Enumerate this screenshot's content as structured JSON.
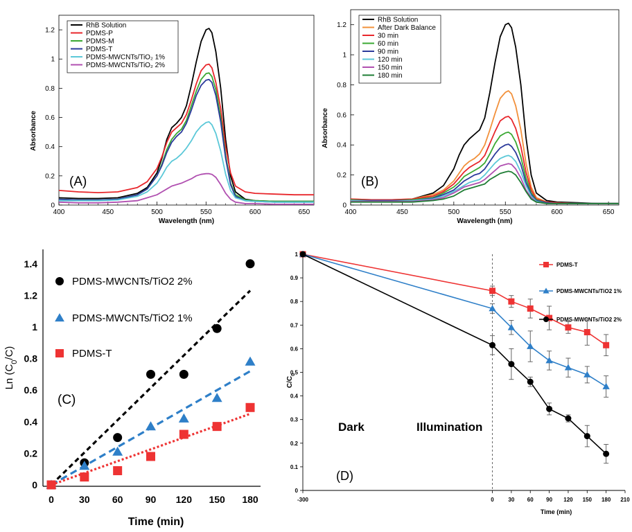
{
  "chart_data": [
    {
      "id": "A",
      "type": "line",
      "panel_label": "(A)",
      "xlabel": "Wavelength (nm)",
      "ylabel": "Absorbance",
      "xlim": [
        400,
        660
      ],
      "ylim": [
        0,
        1.3
      ],
      "xticks": [
        400,
        450,
        500,
        550,
        600,
        650
      ],
      "xtick_labels": [
        "400",
        "450",
        "500",
        "550",
        "600",
        "650"
      ],
      "yticks": [
        0,
        0.2,
        0.4,
        0.6,
        0.8,
        1,
        1.2
      ],
      "ytick_labels": [
        "0",
        "0.2",
        "0.4",
        "0.6",
        "0.8",
        "1",
        "1.2"
      ],
      "legend_position": "top-left",
      "x": [
        400,
        420,
        440,
        460,
        480,
        490,
        500,
        505,
        510,
        515,
        520,
        525,
        530,
        535,
        540,
        545,
        550,
        553,
        556,
        560,
        565,
        570,
        575,
        580,
        590,
        600,
        620,
        640,
        660
      ],
      "series": [
        {
          "name": "RhB Solution",
          "color": "#000000",
          "values": [
            0.05,
            0.045,
            0.045,
            0.05,
            0.08,
            0.12,
            0.22,
            0.32,
            0.45,
            0.53,
            0.56,
            0.6,
            0.68,
            0.82,
            0.98,
            1.12,
            1.2,
            1.21,
            1.18,
            1.05,
            0.8,
            0.45,
            0.2,
            0.09,
            0.04,
            0.03,
            0.025,
            0.025,
            0.025
          ]
        },
        {
          "name": "PDMS-P",
          "color": "#e8262b",
          "values": [
            0.1,
            0.09,
            0.085,
            0.09,
            0.12,
            0.16,
            0.25,
            0.33,
            0.43,
            0.5,
            0.53,
            0.56,
            0.62,
            0.72,
            0.83,
            0.92,
            0.96,
            0.965,
            0.94,
            0.84,
            0.66,
            0.4,
            0.22,
            0.13,
            0.09,
            0.08,
            0.075,
            0.07,
            0.07
          ]
        },
        {
          "name": "PDMS-M",
          "color": "#3aa832",
          "values": [
            0.04,
            0.035,
            0.035,
            0.04,
            0.07,
            0.11,
            0.2,
            0.28,
            0.38,
            0.45,
            0.49,
            0.52,
            0.58,
            0.68,
            0.78,
            0.86,
            0.9,
            0.905,
            0.88,
            0.79,
            0.6,
            0.34,
            0.15,
            0.07,
            0.035,
            0.03,
            0.025,
            0.025,
            0.025
          ]
        },
        {
          "name": "PDMS-T",
          "color": "#2b3a9b",
          "values": [
            0.04,
            0.035,
            0.035,
            0.04,
            0.07,
            0.11,
            0.2,
            0.27,
            0.36,
            0.43,
            0.47,
            0.5,
            0.56,
            0.65,
            0.75,
            0.82,
            0.855,
            0.86,
            0.84,
            0.75,
            0.57,
            0.32,
            0.14,
            0.06,
            0.03,
            0.025,
            0.02,
            0.02,
            0.02
          ]
        },
        {
          "name": "PDMS-MWCNTs/TiO₂ 1%",
          "color": "#5bc8d8",
          "values": [
            0.03,
            0.03,
            0.03,
            0.035,
            0.06,
            0.09,
            0.15,
            0.2,
            0.26,
            0.3,
            0.32,
            0.35,
            0.39,
            0.44,
            0.5,
            0.54,
            0.565,
            0.57,
            0.55,
            0.49,
            0.37,
            0.21,
            0.1,
            0.05,
            0.03,
            0.025,
            0.02,
            0.02,
            0.02
          ]
        },
        {
          "name": "PDMS-MWCNTs/TiO₂ 2%",
          "color": "#b04fb0",
          "values": [
            0.02,
            0.015,
            0.015,
            0.02,
            0.03,
            0.05,
            0.07,
            0.09,
            0.11,
            0.13,
            0.14,
            0.15,
            0.165,
            0.18,
            0.2,
            0.21,
            0.215,
            0.215,
            0.21,
            0.19,
            0.14,
            0.08,
            0.04,
            0.02,
            0.01,
            0.01,
            0.005,
            0.005,
            0.005
          ]
        }
      ]
    },
    {
      "id": "B",
      "type": "line",
      "panel_label": "(B)",
      "xlabel": "Wavelength (nm)",
      "ylabel": "Absorbance",
      "xlim": [
        400,
        660
      ],
      "ylim": [
        0,
        1.3
      ],
      "xticks": [
        400,
        450,
        500,
        550,
        600,
        650
      ],
      "xtick_labels": [
        "400",
        "450",
        "500",
        "550",
        "600",
        "650"
      ],
      "yticks": [
        0,
        0.2,
        0.4,
        0.6,
        0.8,
        1,
        1.2
      ],
      "ytick_labels": [
        "0",
        "0.2",
        "0.4",
        "0.6",
        "0.8",
        "1",
        "1.2"
      ],
      "legend_position": "top-left",
      "x": [
        400,
        420,
        440,
        460,
        480,
        490,
        500,
        505,
        510,
        515,
        520,
        525,
        530,
        535,
        540,
        545,
        550,
        553,
        556,
        560,
        565,
        570,
        575,
        580,
        590,
        600,
        620,
        640,
        660
      ],
      "series": [
        {
          "name": "RhB Solution",
          "color": "#000000",
          "values": [
            0.03,
            0.03,
            0.03,
            0.04,
            0.08,
            0.13,
            0.24,
            0.33,
            0.4,
            0.44,
            0.47,
            0.5,
            0.58,
            0.75,
            0.95,
            1.12,
            1.2,
            1.21,
            1.18,
            1.05,
            0.8,
            0.45,
            0.2,
            0.08,
            0.03,
            0.02,
            0.015,
            0.01,
            0.01
          ]
        },
        {
          "name": "After Dark Balance",
          "color": "#f2903a",
          "values": [
            0.04,
            0.035,
            0.035,
            0.04,
            0.07,
            0.1,
            0.16,
            0.21,
            0.26,
            0.29,
            0.31,
            0.34,
            0.4,
            0.5,
            0.61,
            0.71,
            0.75,
            0.76,
            0.74,
            0.66,
            0.5,
            0.28,
            0.12,
            0.05,
            0.02,
            0.015,
            0.01,
            0.01,
            0.01
          ]
        },
        {
          "name": "30 min",
          "color": "#e8262b",
          "values": [
            0.04,
            0.035,
            0.035,
            0.04,
            0.06,
            0.09,
            0.14,
            0.18,
            0.22,
            0.25,
            0.27,
            0.29,
            0.33,
            0.41,
            0.49,
            0.56,
            0.585,
            0.59,
            0.57,
            0.51,
            0.39,
            0.22,
            0.1,
            0.04,
            0.02,
            0.015,
            0.01,
            0.01,
            0.01
          ]
        },
        {
          "name": "60 min",
          "color": "#3aa832",
          "values": [
            0.035,
            0.03,
            0.03,
            0.035,
            0.05,
            0.08,
            0.12,
            0.15,
            0.19,
            0.21,
            0.23,
            0.25,
            0.28,
            0.34,
            0.41,
            0.46,
            0.48,
            0.485,
            0.47,
            0.42,
            0.32,
            0.18,
            0.08,
            0.035,
            0.015,
            0.01,
            0.01,
            0.01,
            0.01
          ]
        },
        {
          "name": "90 min",
          "color": "#2b3a9b",
          "values": [
            0.03,
            0.03,
            0.03,
            0.03,
            0.045,
            0.07,
            0.1,
            0.13,
            0.16,
            0.18,
            0.2,
            0.21,
            0.24,
            0.29,
            0.34,
            0.38,
            0.4,
            0.405,
            0.39,
            0.35,
            0.27,
            0.15,
            0.07,
            0.03,
            0.015,
            0.01,
            0.01,
            0.01,
            0.01
          ]
        },
        {
          "name": "120 min",
          "color": "#5bc8d8",
          "values": [
            0.03,
            0.025,
            0.025,
            0.03,
            0.04,
            0.06,
            0.09,
            0.11,
            0.13,
            0.15,
            0.16,
            0.17,
            0.2,
            0.24,
            0.28,
            0.31,
            0.325,
            0.33,
            0.32,
            0.29,
            0.22,
            0.13,
            0.06,
            0.025,
            0.01,
            0.01,
            0.01,
            0.01,
            0.01
          ]
        },
        {
          "name": "150 min",
          "color": "#b04fb0",
          "values": [
            0.025,
            0.025,
            0.025,
            0.025,
            0.035,
            0.05,
            0.08,
            0.1,
            0.12,
            0.13,
            0.14,
            0.15,
            0.17,
            0.2,
            0.23,
            0.26,
            0.27,
            0.275,
            0.27,
            0.24,
            0.18,
            0.1,
            0.05,
            0.02,
            0.01,
            0.01,
            0.01,
            0.01,
            0.01
          ]
        },
        {
          "name": "180 min",
          "color": "#1e7d34",
          "values": [
            0.02,
            0.02,
            0.02,
            0.02,
            0.03,
            0.04,
            0.06,
            0.08,
            0.1,
            0.11,
            0.12,
            0.13,
            0.14,
            0.17,
            0.19,
            0.21,
            0.22,
            0.225,
            0.22,
            0.2,
            0.15,
            0.09,
            0.04,
            0.02,
            0.01,
            0.01,
            0.01,
            0.01,
            0.01
          ]
        }
      ]
    },
    {
      "id": "C",
      "type": "scatter",
      "panel_label": "(C)",
      "xlabel": "Time (min)",
      "ylabel": "Ln (C",
      "ylabel_sub": "0",
      "ylabel_end": "/C)",
      "xlim": [
        0,
        180
      ],
      "ylim": [
        0,
        1.5
      ],
      "xticks": [
        0,
        30,
        60,
        90,
        120,
        150,
        180
      ],
      "xtick_labels": [
        "0",
        "30",
        "60",
        "90",
        "120",
        "150",
        "180"
      ],
      "yticks": [
        0,
        0.2,
        0.4,
        0.6,
        0.8,
        1,
        1.2,
        1.4
      ],
      "ytick_labels": [
        "0",
        "0.2",
        "0.4",
        "0.6",
        "0.8",
        "1",
        "1.2",
        "1.4"
      ],
      "legend_position": "top-left",
      "x": [
        0,
        30,
        60,
        90,
        120,
        150,
        180
      ],
      "series": [
        {
          "name": "PDMS-MWCNTs/TiO2 2%",
          "color": "#000000",
          "marker": "circle",
          "values": [
            0,
            0.14,
            0.3,
            0.7,
            0.7,
            0.99,
            1.4
          ],
          "fit": [
            0,
            1.23
          ]
        },
        {
          "name": "PDMS-MWCNTs/TiO2 1%",
          "color": "#2e7fc8",
          "marker": "triangle",
          "values": [
            0,
            0.12,
            0.21,
            0.37,
            0.42,
            0.55,
            0.78
          ],
          "fit": [
            0,
            0.72
          ]
        },
        {
          "name": "PDMS-T",
          "color": "#ee3333",
          "marker": "square",
          "values": [
            0,
            0.05,
            0.09,
            0.18,
            0.32,
            0.37,
            0.49
          ],
          "fit": [
            0,
            0.45
          ]
        }
      ]
    },
    {
      "id": "D",
      "type": "line",
      "panel_label": "(D)",
      "xlabel": "Time (min)",
      "ylabel": "C/C",
      "ylabel_sub": "0",
      "xlim": [
        -300,
        210
      ],
      "ylim": [
        0,
        1
      ],
      "xticks": [
        -300,
        0,
        30,
        60,
        90,
        120,
        150,
        180,
        210
      ],
      "xtick_labels": [
        "-300",
        "0",
        "30",
        "60",
        "90",
        "120",
        "150",
        "180",
        "210"
      ],
      "yticks": [
        0,
        0.1,
        0.2,
        0.3,
        0.4,
        0.5,
        0.6,
        0.7,
        0.8,
        0.9,
        1
      ],
      "ytick_labels": [
        "0",
        "0.1",
        "0.2",
        "0.3",
        "0.4",
        "0.5",
        "0.6",
        "0.7",
        "0.8",
        "0.9",
        "1"
      ],
      "legend_position": "top-right",
      "annotations": {
        "dark": "Dark",
        "illumination": "Illumination"
      },
      "x": [
        -300,
        0,
        30,
        60,
        90,
        120,
        150,
        180
      ],
      "series": [
        {
          "name": "PDMS-T",
          "color": "#ee3333",
          "marker": "square",
          "values": [
            1,
            0.845,
            0.8,
            0.77,
            0.73,
            0.69,
            0.67,
            0.615
          ],
          "errors": [
            0,
            0.02,
            0.025,
            0.04,
            0.05,
            0.025,
            0.055,
            0.045
          ]
        },
        {
          "name": "PDMS-MWCNTs/TiO2 1%",
          "color": "#2e7fc8",
          "marker": "triangle",
          "values": [
            1,
            0.77,
            0.69,
            0.61,
            0.55,
            0.52,
            0.49,
            0.44
          ],
          "errors": [
            0,
            0.02,
            0.03,
            0.065,
            0.04,
            0.04,
            0.035,
            0.045
          ]
        },
        {
          "name": "PDMS-MWCNTs/TiO2 2%",
          "color": "#000000",
          "marker": "circle",
          "values": [
            1,
            0.615,
            0.535,
            0.46,
            0.345,
            0.305,
            0.23,
            0.155
          ],
          "errors": [
            0,
            0.04,
            0.065,
            0.02,
            0.025,
            0.015,
            0.045,
            0.04
          ]
        }
      ]
    }
  ]
}
